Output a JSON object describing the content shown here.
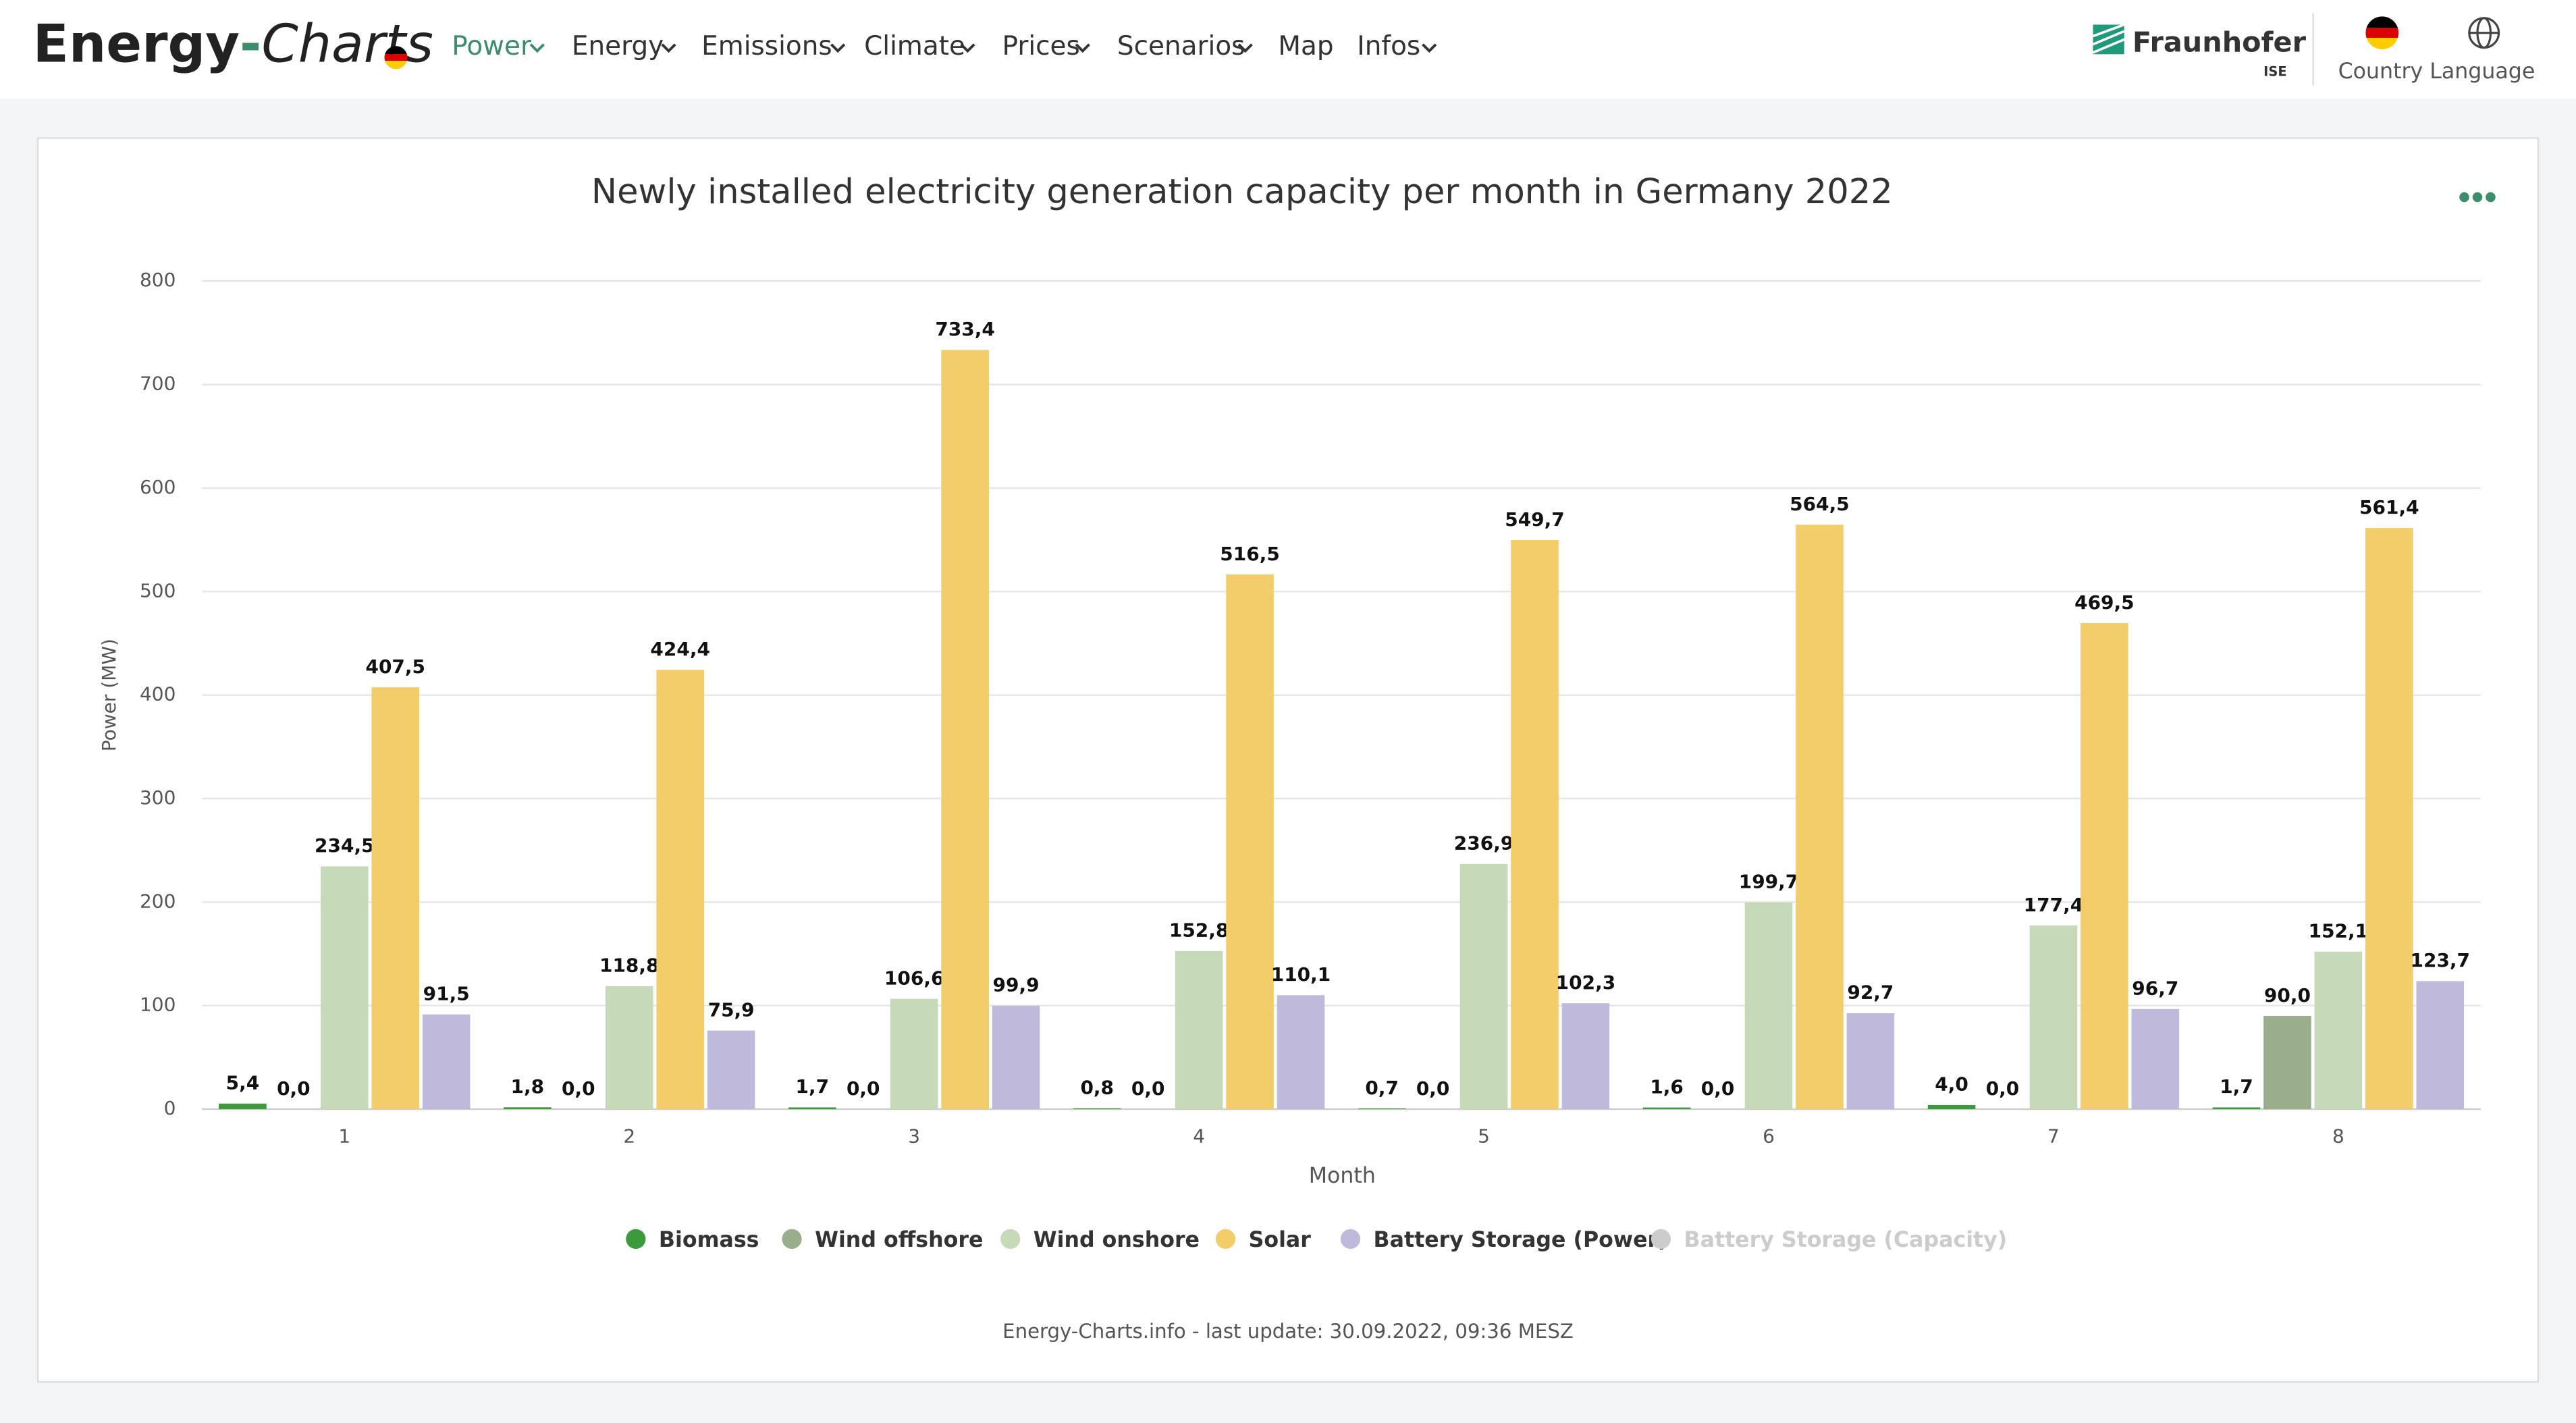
{
  "page": {
    "logo": {
      "part1": "Energy",
      "dash": "-",
      "part2": "Charts"
    },
    "nav": [
      "Power",
      "Energy",
      "Emissions",
      "Climate",
      "Prices",
      "Scenarios",
      "Map",
      "Infos"
    ],
    "brand": {
      "name": "Fraunhofer",
      "sub": "ISE"
    },
    "country": "Country",
    "language": "Language",
    "footer": "Energy-Charts.info - last update: 30.09.2022, 09:36 MESZ"
  },
  "chart_data": {
    "type": "bar",
    "title": "Newly installed electricity generation capacity per month in Germany 2022",
    "x_label": "Month",
    "y_label": "Power (MW)",
    "categories": [
      "1",
      "2",
      "3",
      "4",
      "5",
      "6",
      "7",
      "8"
    ],
    "ylim": [
      0,
      800
    ],
    "yticks": [
      0,
      100,
      200,
      300,
      400,
      500,
      600,
      700,
      800
    ],
    "grid": true,
    "legend": "bottom",
    "series": [
      {
        "name": "Biomass",
        "color": "#3c9a3c",
        "values": [
          5.4,
          1.8,
          1.7,
          0.8,
          0.7,
          1.6,
          4.0,
          1.7
        ],
        "value_labels": [
          "5,4",
          "1,8",
          "1,7",
          "0,8",
          "0,7",
          "1,6",
          "4,0",
          "1,7"
        ]
      },
      {
        "name": "Wind offshore",
        "color": "#9aae8c",
        "values": [
          0,
          0,
          0,
          0,
          0,
          0,
          0,
          90
        ],
        "value_labels": [
          "0,0",
          "0,0",
          "0,0",
          "0,0",
          "0,0",
          "0,0",
          "0,0",
          "90,0"
        ]
      },
      {
        "name": "Wind onshore",
        "color": "#c6d9b8",
        "values": [
          234.5,
          118.8,
          106.6,
          152.8,
          236.9,
          199.7,
          177.4,
          152.1
        ],
        "value_labels": [
          "234,5",
          "118,8",
          "106,6",
          "152,8",
          "236,9",
          "199,7",
          "177,4",
          "152,1"
        ]
      },
      {
        "name": "Solar",
        "color": "#f2cd6a",
        "values": [
          407.5,
          424.4,
          733.4,
          516.5,
          549.7,
          564.5,
          469.5,
          561.4
        ],
        "value_labels": [
          "407,5",
          "424,4",
          "733,4",
          "516,5",
          "549,7",
          "564,5",
          "469,5",
          "561,4"
        ]
      },
      {
        "name": "Battery Storage (Power)",
        "color": "#bfb9dc",
        "values": [
          91.5,
          75.9,
          99.9,
          110.1,
          102.3,
          92.7,
          96.7,
          123.7
        ],
        "value_labels": [
          "91,5",
          "75,9",
          "99,9",
          "110,1",
          "102,3",
          "92,7",
          "96,7",
          "123,7"
        ]
      },
      {
        "name": "Battery Storage (Capacity)",
        "color": "#cccccc",
        "hidden": true
      }
    ]
  }
}
